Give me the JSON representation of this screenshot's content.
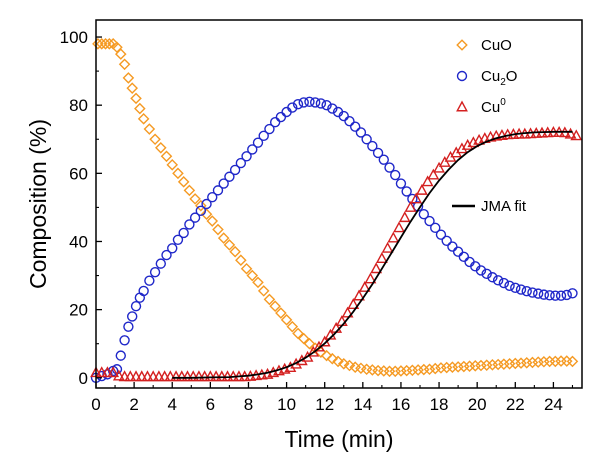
{
  "chart_data": {
    "type": "scatter",
    "xlabel": "Time (min)",
    "ylabel": "Composition (%)",
    "xlim": [
      0,
      25.5
    ],
    "ylim": [
      -3,
      105
    ],
    "xticks": [
      0,
      2,
      4,
      6,
      8,
      10,
      12,
      14,
      16,
      18,
      20,
      22,
      24
    ],
    "yticks": [
      0,
      20,
      40,
      60,
      80,
      100
    ],
    "grid": false,
    "legend_position": "top-right",
    "series": [
      {
        "name": "CuO",
        "marker": "diamond",
        "color": "#f59a23",
        "x": [
          0.1,
          0.3,
          0.5,
          0.7,
          0.9,
          1.1,
          1.3,
          1.5,
          1.7,
          1.9,
          2.1,
          2.3,
          2.5,
          2.8,
          3.1,
          3.4,
          3.7,
          4.0,
          4.3,
          4.6,
          4.9,
          5.2,
          5.5,
          5.8,
          6.1,
          6.4,
          6.7,
          7.0,
          7.3,
          7.6,
          7.9,
          8.2,
          8.5,
          8.8,
          9.1,
          9.4,
          9.7,
          10.0,
          10.3,
          10.6,
          10.9,
          11.2,
          11.5,
          11.8,
          12.1,
          12.4,
          12.7,
          13.0,
          13.3,
          13.6,
          13.9,
          14.2,
          14.5,
          14.8,
          15.1,
          15.4,
          15.7,
          16.0,
          16.3,
          16.6,
          16.9,
          17.2,
          17.5,
          17.8,
          18.1,
          18.4,
          18.7,
          19.0,
          19.3,
          19.6,
          19.9,
          20.2,
          20.5,
          20.8,
          21.1,
          21.4,
          21.7,
          22.0,
          22.3,
          22.6,
          22.9,
          23.2,
          23.5,
          23.8,
          24.1,
          24.4,
          24.7,
          25.0
        ],
        "y": [
          98,
          98,
          98,
          98,
          98,
          97,
          95,
          92,
          88,
          85,
          82,
          79,
          76,
          73,
          70,
          67.5,
          65,
          62.5,
          60,
          57.5,
          55,
          52.5,
          50.5,
          48,
          46,
          43.5,
          41,
          39,
          37,
          34.5,
          32,
          30,
          28,
          25.5,
          23,
          21,
          19,
          17,
          15,
          13,
          11.5,
          10,
          8.7,
          7.5,
          6.5,
          5.6,
          4.8,
          4.1,
          3.6,
          3.1,
          2.8,
          2.5,
          2.3,
          2.1,
          2,
          1.9,
          1.9,
          2,
          2.1,
          2.2,
          2.3,
          2.4,
          2.5,
          2.7,
          2.9,
          3,
          3.1,
          3.2,
          3.3,
          3.4,
          3.5,
          3.6,
          3.7,
          3.8,
          3.9,
          4,
          4.1,
          4.2,
          4.3,
          4.4,
          4.5,
          4.6,
          4.7,
          4.8,
          4.8,
          4.9,
          4.9,
          4.8
        ]
      },
      {
        "name": "Cu2O",
        "marker": "circle",
        "color": "#1f27c9",
        "x": [
          0.0,
          0.3,
          0.6,
          0.9,
          1.1,
          1.3,
          1.5,
          1.7,
          1.9,
          2.1,
          2.3,
          2.5,
          2.8,
          3.1,
          3.4,
          3.7,
          4.0,
          4.3,
          4.6,
          4.9,
          5.2,
          5.5,
          5.8,
          6.1,
          6.4,
          6.7,
          7.0,
          7.3,
          7.6,
          7.9,
          8.2,
          8.5,
          8.8,
          9.1,
          9.4,
          9.7,
          10.0,
          10.3,
          10.6,
          10.9,
          11.2,
          11.5,
          11.8,
          12.1,
          12.4,
          12.7,
          13.0,
          13.3,
          13.6,
          13.9,
          14.2,
          14.5,
          14.8,
          15.1,
          15.4,
          15.7,
          16.0,
          16.3,
          16.6,
          16.9,
          17.2,
          17.5,
          17.8,
          18.1,
          18.4,
          18.7,
          19.0,
          19.3,
          19.6,
          19.9,
          20.2,
          20.5,
          20.8,
          21.1,
          21.4,
          21.7,
          22.0,
          22.3,
          22.6,
          22.9,
          23.2,
          23.5,
          23.8,
          24.1,
          24.4,
          24.7,
          25.0
        ],
        "y": [
          0,
          0.5,
          1,
          2,
          2.5,
          6.5,
          11,
          15,
          18,
          21,
          23.5,
          25.5,
          28.5,
          31,
          33.5,
          36,
          38,
          40.5,
          42.5,
          45,
          47,
          49,
          51,
          53,
          55,
          57,
          59,
          61,
          63,
          65,
          67,
          69,
          71,
          73,
          75,
          76.5,
          78,
          79.3,
          80.3,
          80.8,
          81,
          80.8,
          80.5,
          80,
          79,
          78,
          76.8,
          75.3,
          73.7,
          72,
          70,
          68,
          66,
          64,
          61.7,
          59.5,
          57,
          54.7,
          52.5,
          50.3,
          48,
          46,
          44,
          42,
          40.2,
          38.5,
          37,
          35.5,
          34,
          32.7,
          31.5,
          30.5,
          29.5,
          28.6,
          27.8,
          27,
          26.4,
          25.9,
          25.4,
          25,
          24.7,
          24.4,
          24.2,
          24.1,
          24.1,
          24.3,
          24.8
        ]
      },
      {
        "name": "Cu0",
        "marker": "triangle",
        "color": "#d42020",
        "x": [
          0.0,
          0.3,
          0.6,
          0.9,
          1.2,
          1.5,
          1.8,
          2.1,
          2.4,
          2.7,
          3.0,
          3.3,
          3.6,
          3.9,
          4.2,
          4.5,
          4.8,
          5.1,
          5.4,
          5.7,
          6.0,
          6.3,
          6.6,
          6.9,
          7.2,
          7.5,
          7.8,
          8.1,
          8.4,
          8.7,
          9.0,
          9.3,
          9.6,
          9.9,
          10.2,
          10.5,
          10.8,
          11.1,
          11.4,
          11.7,
          12.0,
          12.3,
          12.6,
          12.9,
          13.2,
          13.5,
          13.8,
          14.1,
          14.4,
          14.7,
          15.0,
          15.3,
          15.6,
          15.9,
          16.2,
          16.5,
          16.8,
          17.1,
          17.4,
          17.7,
          18.0,
          18.3,
          18.6,
          18.9,
          19.2,
          19.5,
          19.8,
          20.1,
          20.4,
          20.7,
          21.0,
          21.3,
          21.6,
          21.9,
          22.2,
          22.5,
          22.8,
          23.1,
          23.4,
          23.7,
          24.0,
          24.3,
          24.6,
          24.9,
          25.2
        ],
        "y": [
          1.5,
          1.5,
          1.5,
          1.5,
          0.5,
          0.3,
          0.3,
          0.3,
          0.3,
          0.3,
          0.3,
          0.3,
          0.3,
          0.3,
          0.3,
          0.3,
          0.3,
          0.3,
          0.3,
          0.3,
          0.3,
          0.3,
          0.3,
          0.3,
          0.3,
          0.3,
          0.3,
          0.4,
          0.6,
          0.8,
          1,
          1.5,
          2,
          2.5,
          3,
          4,
          5,
          6,
          7.5,
          9,
          10.5,
          12.5,
          14.5,
          16.5,
          19,
          21.5,
          24,
          26.5,
          29,
          32,
          35,
          38,
          41,
          44,
          47,
          50,
          52.5,
          55,
          57.5,
          59.5,
          61.5,
          63.2,
          64.7,
          66,
          67.2,
          68.2,
          69,
          69.7,
          70.2,
          70.6,
          70.9,
          71.1,
          71.3,
          71.4,
          71.5,
          71.5,
          71.6,
          71.7,
          71.8,
          71.9,
          72,
          72,
          71.9,
          71.5,
          71
        ]
      },
      {
        "name": "JMA fit",
        "marker": "line",
        "color": "#000000",
        "x": [
          4.0,
          5.0,
          6.0,
          7.0,
          7.5,
          8.0,
          8.5,
          9.0,
          9.5,
          10.0,
          10.5,
          11.0,
          11.5,
          12.0,
          12.5,
          13.0,
          13.5,
          14.0,
          14.5,
          15.0,
          15.5,
          16.0,
          16.5,
          17.0,
          17.5,
          18.0,
          18.5,
          19.0,
          19.5,
          20.0,
          20.5,
          21.0,
          21.5,
          22.0,
          22.5,
          23.0,
          23.5,
          24.0,
          24.5,
          25.0
        ],
        "y": [
          0,
          0,
          0.1,
          0.2,
          0.4,
          0.6,
          1,
          1.5,
          2.2,
          3.1,
          4.3,
          5.9,
          7.8,
          10.1,
          12.8,
          15.9,
          19.4,
          23.3,
          27.5,
          32,
          36.6,
          41.2,
          45.8,
          50.1,
          54.2,
          57.9,
          61.1,
          63.9,
          66.2,
          68,
          69.3,
          70.3,
          71,
          71.5,
          71.8,
          72,
          72.1,
          72.2,
          72.2,
          72.2
        ]
      }
    ]
  },
  "legend": {
    "items": [
      {
        "marker": "diamond",
        "color": "#f59a23",
        "label": "CuO",
        "base": "CuO",
        "sub": "",
        "sup": ""
      },
      {
        "marker": "circle",
        "color": "#1f27c9",
        "label": "Cu2O",
        "base": "Cu",
        "sub": "2",
        "sup": "",
        "tail": "O"
      },
      {
        "marker": "triangle",
        "color": "#d42020",
        "label": "Cu0",
        "base": "Cu",
        "sub": "",
        "sup": "0"
      }
    ],
    "fit_label": "JMA fit"
  }
}
